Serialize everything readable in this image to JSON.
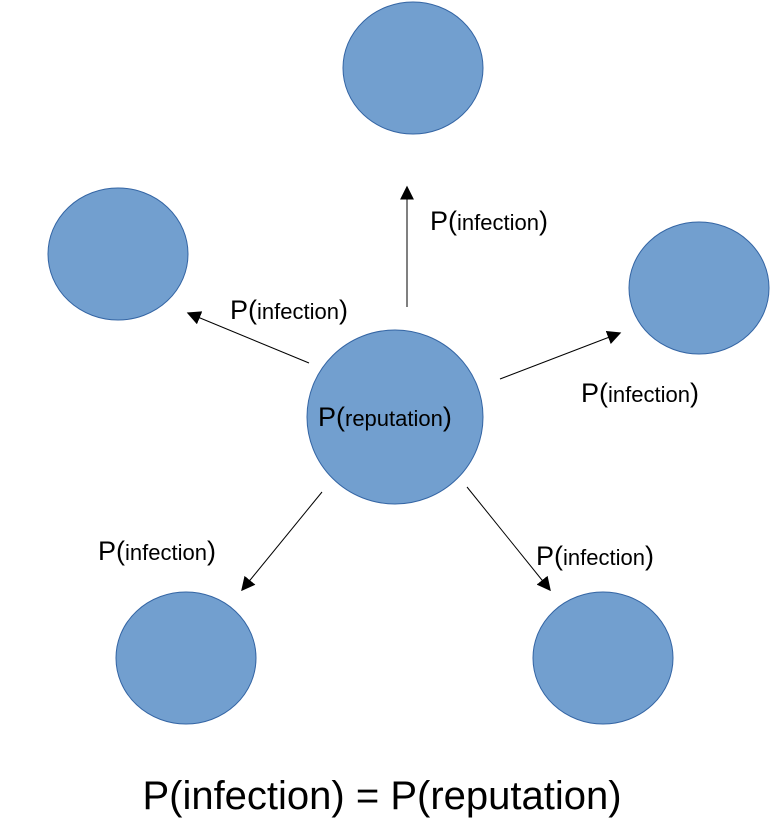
{
  "colors": {
    "node_fill": "#729fcf",
    "node_stroke": "#3465a4",
    "arrow": "#000000"
  },
  "center_node": {
    "prefix": "P(",
    "word": "reputation",
    "suffix": ")"
  },
  "edge_label": {
    "prefix": "P(",
    "word": "infection",
    "suffix": ")"
  },
  "edges": [
    {
      "target": "top"
    },
    {
      "target": "upper-left"
    },
    {
      "target": "upper-right"
    },
    {
      "target": "lower-left"
    },
    {
      "target": "lower-right"
    }
  ],
  "formula": "P(infection) = P(reputation)"
}
